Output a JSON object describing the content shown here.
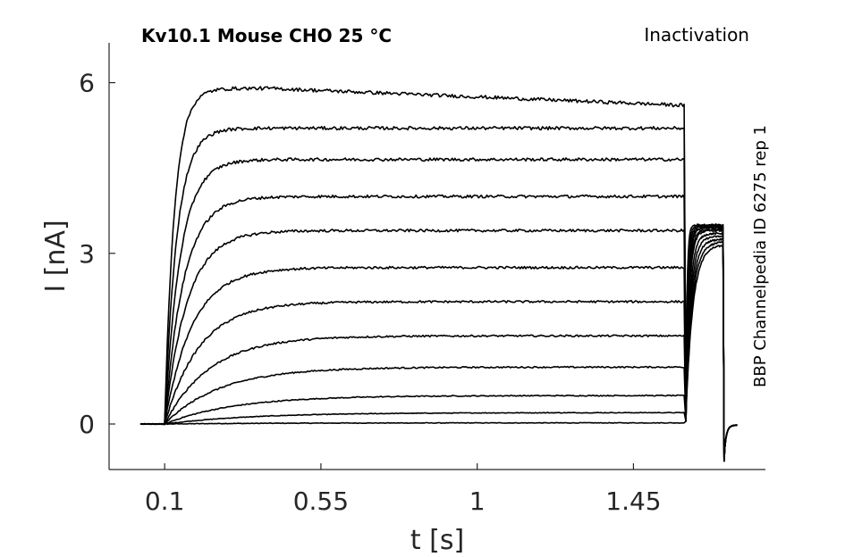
{
  "chart_data": {
    "type": "line",
    "title": "Kv10.1  Mouse  CHO  25 °C",
    "protocol": "Inactivation",
    "source": "BBP Channelpedia ID 6275 rep 1",
    "xlabel": "t [s]",
    "ylabel": "I [nA]",
    "xlim": [
      -0.06,
      1.83
    ],
    "ylim": [
      -0.8,
      6.7
    ],
    "xticks": [
      0.1,
      0.55,
      1,
      1.45
    ],
    "xtick_labels": [
      "0.1",
      "0.55",
      "1",
      "1.45"
    ],
    "yticks": [
      0,
      3,
      6
    ],
    "ytick_labels": [
      "0",
      "3",
      "6"
    ],
    "grid": false,
    "legend": "none",
    "pulse": {
      "baseline_start": 0.03,
      "step_on": 0.1,
      "step_off": 1.6,
      "tail_end": 1.71,
      "trace_end": 1.75
    },
    "series": [
      {
        "plateau": 0.02,
        "tau": 0.3,
        "tail": 3.15,
        "tail_tau": 0.02
      },
      {
        "plateau": 0.2,
        "tau": 0.25,
        "tail": 3.2,
        "tail_tau": 0.018
      },
      {
        "plateau": 0.5,
        "tau": 0.2,
        "tail": 3.25,
        "tail_tau": 0.016
      },
      {
        "plateau": 1.0,
        "tau": 0.16,
        "tail": 3.3,
        "tail_tau": 0.014
      },
      {
        "plateau": 1.55,
        "tau": 0.13,
        "tail": 3.35,
        "tail_tau": 0.012
      },
      {
        "plateau": 2.15,
        "tau": 0.1,
        "tail": 3.4,
        "tail_tau": 0.01
      },
      {
        "plateau": 2.75,
        "tau": 0.08,
        "tail": 3.42,
        "tail_tau": 0.009
      },
      {
        "plateau": 3.4,
        "tau": 0.065,
        "tail": 3.45,
        "tail_tau": 0.008
      },
      {
        "plateau": 4.0,
        "tau": 0.055,
        "tail": 3.45,
        "tail_tau": 0.007
      },
      {
        "plateau": 4.65,
        "tau": 0.045,
        "tail": 3.47,
        "tail_tau": 0.006
      },
      {
        "plateau": 5.2,
        "tau": 0.035,
        "tail": 3.48,
        "tail_tau": 0.005
      },
      {
        "plateau": 5.9,
        "tau": 0.028,
        "tail": 3.5,
        "tail_tau": 0.004,
        "end": 5.6
      }
    ]
  }
}
